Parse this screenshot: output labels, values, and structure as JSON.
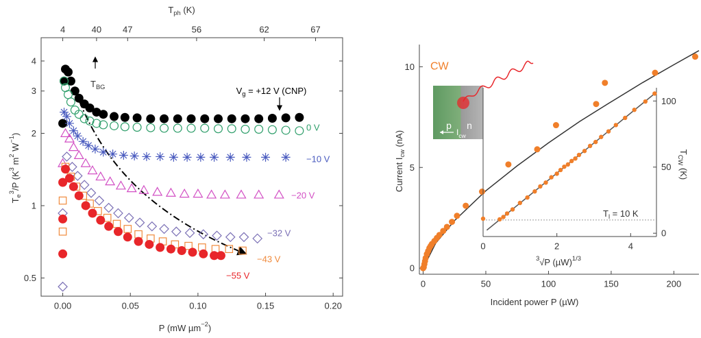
{
  "chart_data": [
    {
      "type": "scatter",
      "log_y": true,
      "xlabel": [
        {
          "text": "P (mW µm"
        },
        {
          "text": "−2",
          "shift": "super"
        },
        {
          "text": ")"
        }
      ],
      "ylabel": [
        {
          "text": "T"
        },
        {
          "text": "e",
          "shift": "sub"
        },
        {
          "text": "3",
          "shift": "super"
        },
        {
          "text": "/P (K"
        },
        {
          "text": "3",
          "shift": "super"
        },
        {
          "text": " m"
        },
        {
          "text": "2",
          "shift": "super"
        },
        {
          "text": " W"
        },
        {
          "text": "−1",
          "shift": "super"
        },
        {
          "text": ")"
        }
      ],
      "x2label": [
        {
          "text": "T"
        },
        {
          "text": "ph",
          "shift": "sub"
        },
        {
          "text": " (K)"
        }
      ],
      "x2ticks": [
        4,
        40,
        47,
        56,
        62,
        67
      ],
      "x2tick_positions": [
        0,
        0.025,
        0.048,
        0.099,
        0.149,
        0.187
      ],
      "xlim": [
        -0.016,
        0.207
      ],
      "xticks": [
        {
          "value": 0,
          "label": "0.00"
        },
        {
          "value": 0.05,
          "label": "0.05"
        },
        {
          "value": 0.1,
          "label": "0.10"
        },
        {
          "value": 0.15,
          "label": "0.15"
        },
        {
          "value": 0.2,
          "label": "0.20"
        }
      ],
      "ylim": [
        0.42,
        5.0
      ],
      "yticks": [
        0.5,
        1,
        2,
        3,
        4
      ],
      "annotation": [
        {
          "text": "T"
        },
        {
          "text": "BG",
          "shift": "sub"
        }
      ],
      "series": [
        {
          "name": [
            {
              "text": "V"
            },
            {
              "text": "g",
              "shift": "sub"
            },
            {
              "text": " = +12 V (CNP)"
            }
          ],
          "color": "#000000",
          "marker": "filled-circle",
          "x": [
            0,
            0.001,
            0.002,
            0.004,
            0.006,
            0.009,
            0.012,
            0.016,
            0.02,
            0.025,
            0.03,
            0.038,
            0.046,
            0.055,
            0.065,
            0.075,
            0.085,
            0.095,
            0.105,
            0.115,
            0.125,
            0.135,
            0.145,
            0.155,
            0.165,
            0.175
          ],
          "values": [
            2.2,
            3.3,
            3.7,
            3.6,
            3.3,
            3.0,
            2.8,
            2.65,
            2.55,
            2.45,
            2.4,
            2.35,
            2.33,
            2.32,
            2.3,
            2.3,
            2.3,
            2.3,
            2.3,
            2.3,
            2.3,
            2.3,
            2.3,
            2.31,
            2.32,
            2.33
          ]
        },
        {
          "name": "0 V",
          "color": "#2e9e6a",
          "marker": "open-circle",
          "x": [
            0.001,
            0.002,
            0.004,
            0.006,
            0.009,
            0.012,
            0.016,
            0.02,
            0.025,
            0.03,
            0.038,
            0.046,
            0.055,
            0.065,
            0.075,
            0.085,
            0.095,
            0.105,
            0.115,
            0.125,
            0.135,
            0.145,
            0.155,
            0.165,
            0.175
          ],
          "values": [
            3.3,
            3.1,
            2.9,
            2.7,
            2.5,
            2.4,
            2.3,
            2.25,
            2.2,
            2.17,
            2.15,
            2.13,
            2.12,
            2.11,
            2.1,
            2.1,
            2.1,
            2.1,
            2.09,
            2.09,
            2.08,
            2.08,
            2.07,
            2.06,
            2.05
          ]
        },
        {
          "name": "−10 V",
          "color": "#4a5bbf",
          "marker": "star",
          "x": [
            0.001,
            0.003,
            0.005,
            0.008,
            0.011,
            0.015,
            0.019,
            0.024,
            0.03,
            0.037,
            0.045,
            0.053,
            0.062,
            0.072,
            0.082,
            0.092,
            0.102,
            0.112,
            0.124,
            0.136,
            0.15,
            0.165
          ],
          "values": [
            2.45,
            2.35,
            2.2,
            2.05,
            1.95,
            1.85,
            1.78,
            1.72,
            1.67,
            1.64,
            1.62,
            1.61,
            1.6,
            1.6,
            1.59,
            1.59,
            1.59,
            1.59,
            1.59,
            1.59,
            1.59,
            1.59
          ]
        },
        {
          "name": "−20 V",
          "color": "#d24fc4",
          "marker": "open-triangle",
          "x": [
            0,
            0.002,
            0.005,
            0.008,
            0.012,
            0.017,
            0.022,
            0.028,
            0.035,
            0.043,
            0.051,
            0.06,
            0.07,
            0.08,
            0.09,
            0.1,
            0.11,
            0.12,
            0.132,
            0.145,
            0.16
          ],
          "values": [
            1.5,
            2.0,
            1.9,
            1.75,
            1.62,
            1.5,
            1.4,
            1.32,
            1.26,
            1.21,
            1.18,
            1.16,
            1.14,
            1.13,
            1.12,
            1.12,
            1.11,
            1.11,
            1.11,
            1.11,
            1.11
          ]
        },
        {
          "name": "−32 V",
          "color": "#7a6fb5",
          "marker": "open-diamond",
          "x": [
            0,
            0,
            0.003,
            0.007,
            0.011,
            0.016,
            0.021,
            0.027,
            0.034,
            0.041,
            0.049,
            0.057,
            0.066,
            0.075,
            0.084,
            0.094,
            0.104,
            0.114,
            0.124,
            0.134,
            0.144
          ],
          "values": [
            0.46,
            0.93,
            1.6,
            1.45,
            1.33,
            1.22,
            1.13,
            1.05,
            0.98,
            0.93,
            0.89,
            0.85,
            0.82,
            0.8,
            0.78,
            0.77,
            0.76,
            0.75,
            0.74,
            0.74,
            0.73
          ]
        },
        {
          "name": "−43 V",
          "color": "#f08a3c",
          "marker": "open-square",
          "x": [
            0,
            0,
            0.002,
            0.006,
            0.01,
            0.015,
            0.02,
            0.026,
            0.033,
            0.04,
            0.048,
            0.056,
            0.065,
            0.074,
            0.083,
            0.093,
            0.103,
            0.113,
            0.123,
            0.133
          ],
          "values": [
            0.78,
            1.05,
            1.45,
            1.32,
            1.2,
            1.1,
            1.02,
            0.95,
            0.89,
            0.84,
            0.8,
            0.76,
            0.73,
            0.71,
            0.69,
            0.68,
            0.67,
            0.66,
            0.66,
            0.65
          ]
        },
        {
          "name": "−55 V",
          "color": "#e8262a",
          "marker": "filled-circle",
          "x": [
            0,
            0,
            0,
            0.002,
            0.005,
            0.008,
            0.012,
            0.017,
            0.022,
            0.028,
            0.034,
            0.041,
            0.048,
            0.056,
            0.064,
            0.072,
            0.08,
            0.088,
            0.096,
            0.104,
            0.112,
            0.117
          ],
          "values": [
            0.63,
            0.88,
            1.25,
            1.42,
            1.3,
            1.2,
            1.1,
            1.0,
            0.93,
            0.87,
            0.82,
            0.78,
            0.74,
            0.71,
            0.69,
            0.67,
            0.66,
            0.65,
            0.64,
            0.63,
            0.62,
            0.62
          ]
        }
      ]
    },
    {
      "type": "scatter",
      "xlabel": [
        {
          "text": "Incident power P (µW)"
        }
      ],
      "ylabel": [
        {
          "text": "Current I"
        },
        {
          "text": "cw",
          "shift": "sub"
        },
        {
          "text": " (nA)"
        }
      ],
      "xlim": [
        -3,
        220
      ],
      "xticks": [
        0,
        50,
        100,
        150,
        200
      ],
      "ylim": [
        -0.3,
        11.1
      ],
      "yticks": [
        0,
        5,
        10
      ],
      "series": [
        {
          "name": "CW",
          "color": "#f07f2a",
          "marker": "filled-circle",
          "x": [
            0,
            0.5,
            1,
            1.5,
            2,
            3,
            4,
            5,
            6,
            7,
            9,
            11,
            13,
            16,
            19,
            23,
            27,
            34,
            47,
            68,
            91,
            106,
            138,
            145,
            185,
            217
          ],
          "values": [
            0,
            0.05,
            0.2,
            0.35,
            0.5,
            0.7,
            0.85,
            1.0,
            1.1,
            1.2,
            1.35,
            1.5,
            1.65,
            1.85,
            2.05,
            2.3,
            2.6,
            3.1,
            3.8,
            5.15,
            5.9,
            7.1,
            8.15,
            9.2,
            9.7,
            10.5
          ]
        }
      ],
      "fit": {
        "color": "#333333",
        "x": [
          0,
          10,
          25,
          50,
          75,
          100,
          125,
          150,
          175,
          200,
          220
        ],
        "values": [
          0,
          1.24,
          2.36,
          3.84,
          5.08,
          6.22,
          7.29,
          8.26,
          9.21,
          10.1,
          10.8
        ]
      },
      "image_labels": [
        "p",
        "n"
      ],
      "image_arrow_label": [
        {
          "text": "I"
        },
        {
          "text": "cw",
          "shift": "sub"
        }
      ],
      "inset": {
        "type": "scatter",
        "xlabel": [
          {
            "text": "3",
            "shift": "super"
          },
          {
            "text": "√P (µW)"
          },
          {
            "text": "1/3",
            "shift": "super"
          }
        ],
        "ylabel": [
          {
            "text": "T"
          },
          {
            "text": "CW",
            "shift": "sub"
          },
          {
            "text": " (K)"
          }
        ],
        "xlim": [
          0,
          4.7
        ],
        "xticks": [
          0,
          2,
          4
        ],
        "ylim": [
          -2.5,
          110
        ],
        "yticks": [
          0,
          50,
          100
        ],
        "hline": 10,
        "hline_label": [
          {
            "text": "T"
          },
          {
            "text": "l",
            "shift": "sub"
          },
          {
            "text": " = 10 K"
          }
        ],
        "series": [
          {
            "color": "#f07f2a",
            "marker": "filled-circle",
            "x": [
              0,
              0.45,
              0.55,
              0.65,
              0.8,
              1.0,
              1.2,
              1.4,
              1.55,
              1.7,
              1.85,
              2.0,
              2.1,
              2.2,
              2.3,
              2.4,
              2.5,
              2.6,
              2.75,
              2.9,
              3.05,
              3.2,
              3.4,
              3.6,
              3.85,
              4.1,
              4.4,
              4.65
            ],
            "values": [
              11,
              10.5,
              12.3,
              14.9,
              18.0,
              22.9,
              27.0,
              31.6,
              35.4,
              38.3,
              42.3,
              45.0,
              47.8,
              50.3,
              52.0,
              54.6,
              56.5,
              59.2,
              62.2,
              66.0,
              69.0,
              72.8,
              77.0,
              81.8,
              87.2,
              93.3,
              99.6,
              105.6
            ]
          }
        ],
        "fit": {
          "color": "#555555",
          "x": [
            0.1,
            4.7
          ],
          "values": [
            2.3,
            106.7
          ]
        }
      }
    }
  ]
}
